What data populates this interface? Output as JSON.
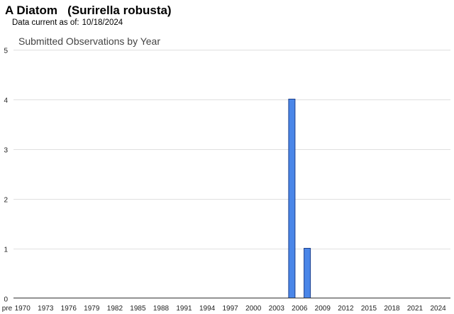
{
  "header": {
    "species_common": "A Diatom",
    "species_scientific": "(Surirella robusta)",
    "data_current_label": "Data current as of:",
    "data_current_date": "10/18/2024"
  },
  "colors": {
    "bar_fill": "#4a86e8",
    "bar_stroke": "#1c3f8c",
    "gridline": "#e0e0e0",
    "axis": "#333333",
    "text": "#222222",
    "title_text": "#444444"
  },
  "chart_data": {
    "type": "bar",
    "title": "Submitted Observations by Year",
    "xlabel": "",
    "ylabel": "",
    "ylim": [
      0,
      5
    ],
    "yticks": [
      "0",
      "1",
      "2",
      "3",
      "4",
      "5"
    ],
    "grid": true,
    "legend": "none",
    "x_tick_labels": [
      "pre",
      "1970",
      "1973",
      "1976",
      "1979",
      "1982",
      "1985",
      "1988",
      "1991",
      "1994",
      "1997",
      "2000",
      "2003",
      "2006",
      "2009",
      "2012",
      "2015",
      "2018",
      "2021",
      "2024"
    ],
    "bars": [
      {
        "category": "2005",
        "value": 4
      },
      {
        "category": "2007",
        "value": 1
      }
    ]
  }
}
